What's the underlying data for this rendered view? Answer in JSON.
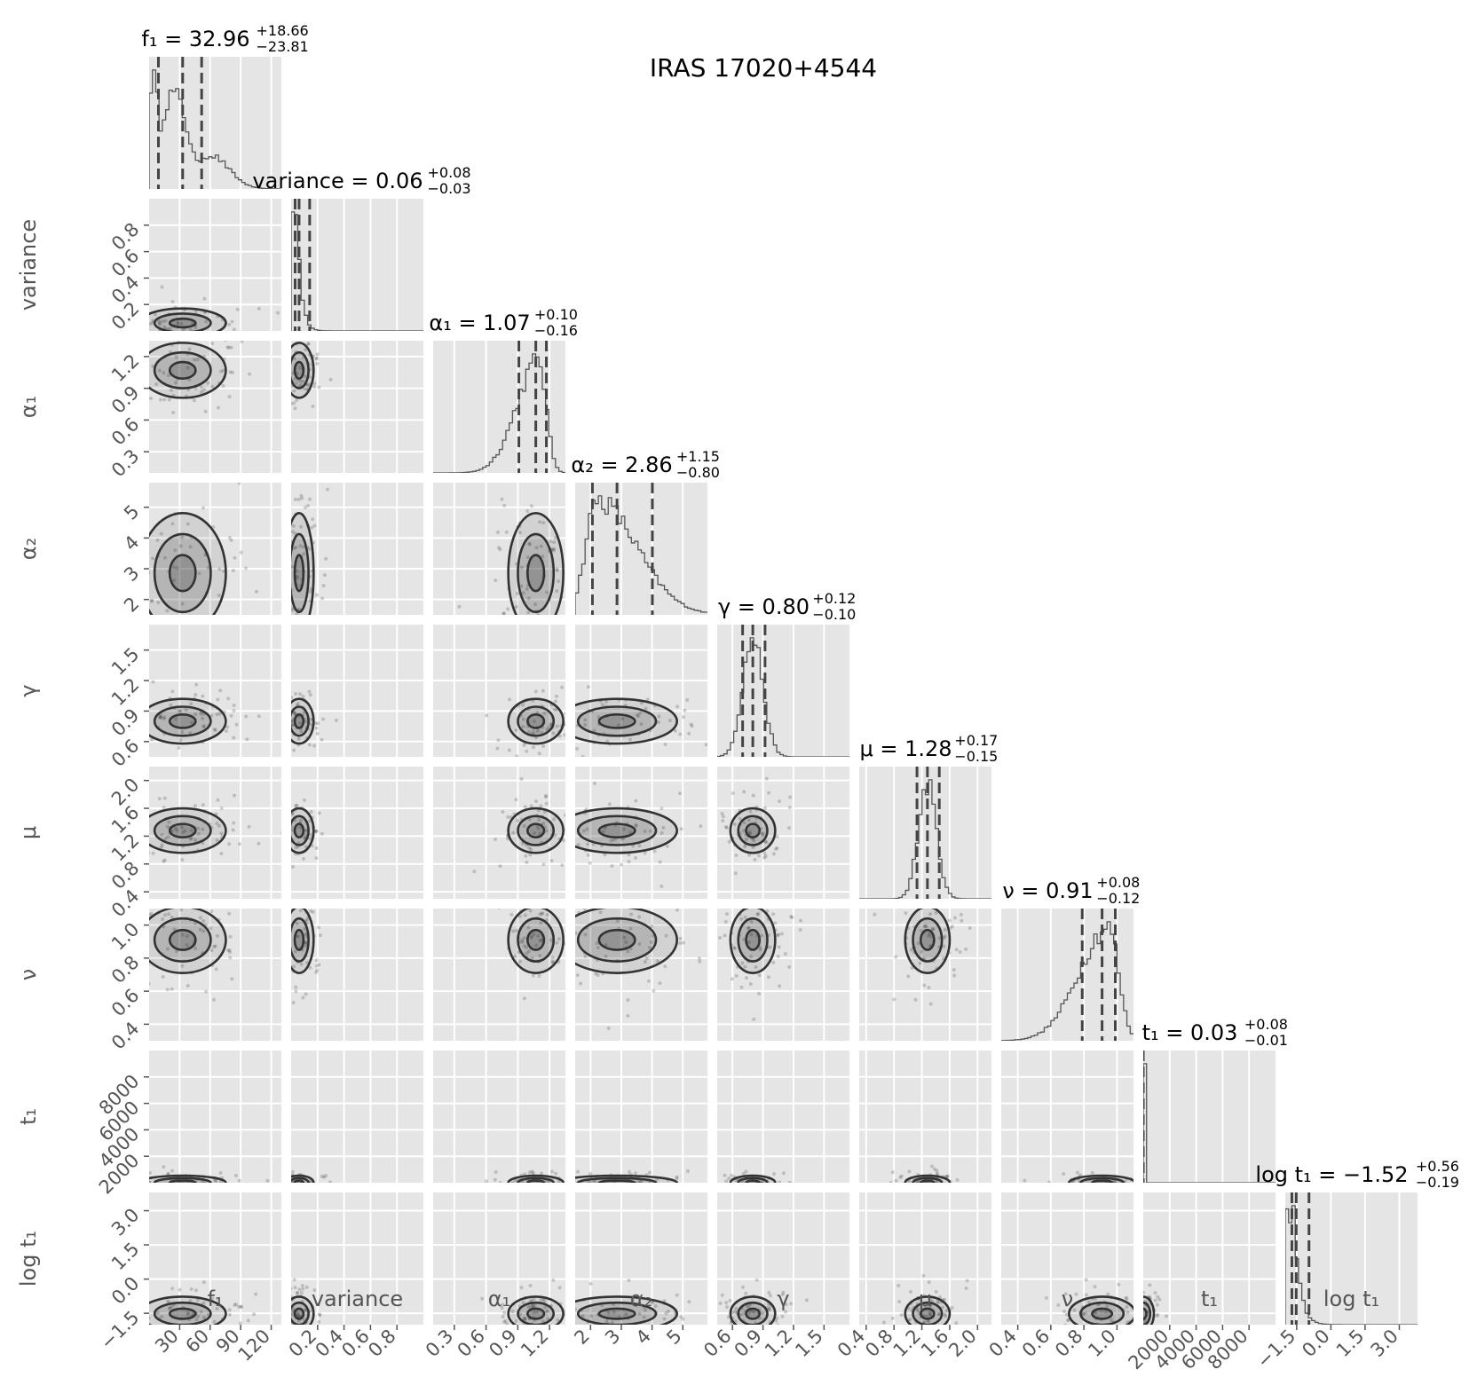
{
  "chart_data": {
    "type": "corner",
    "title": "IRAS 17020+4544",
    "parameters": [
      {
        "key": "f1",
        "label": "f₁",
        "range": [
          0,
          130
        ],
        "ticks": [
          "30",
          "60",
          "90",
          "120"
        ],
        "tick_values": [
          30,
          60,
          90,
          120
        ],
        "median": "32.96",
        "plus": "+18.66",
        "minus": "−23.81",
        "title_prefix": "f₁ = ",
        "quantiles": [
          9.15,
          32.96,
          51.62
        ],
        "hist_mode": "multi",
        "hist_peak": [
          24,
          48
        ]
      },
      {
        "key": "variance",
        "label": "variance",
        "range": [
          0,
          1.0
        ],
        "ticks": [
          "0.2",
          "0.4",
          "0.6",
          "0.8"
        ],
        "tick_values": [
          0.2,
          0.4,
          0.6,
          0.8
        ],
        "median": "0.06",
        "plus": "+0.08",
        "minus": "−0.03",
        "title_prefix": "variance = ",
        "quantiles": [
          0.03,
          0.06,
          0.14
        ],
        "hist_mode": "spike",
        "hist_peak": [
          0.05,
          0.03
        ]
      },
      {
        "key": "alpha1",
        "label": "α₁",
        "range": [
          0.1,
          1.35
        ],
        "ticks": [
          "0.3",
          "0.6",
          "0.9",
          "1.2"
        ],
        "tick_values": [
          0.3,
          0.6,
          0.9,
          1.2
        ],
        "median": "1.07",
        "plus": "+0.10",
        "minus": "−0.16",
        "title_prefix": "α₁ = ",
        "quantiles": [
          0.91,
          1.07,
          1.17
        ],
        "hist_mode": "leftskew",
        "hist_peak": [
          1.1,
          0.07
        ]
      },
      {
        "key": "alpha2",
        "label": "α₂",
        "range": [
          1.5,
          5.8
        ],
        "ticks": [
          "2",
          "3",
          "4",
          "5"
        ],
        "tick_values": [
          2,
          3,
          4,
          5
        ],
        "median": "2.86",
        "plus": "+1.15",
        "minus": "−0.80",
        "title_prefix": "α₂ = ",
        "quantiles": [
          2.06,
          2.86,
          4.01
        ],
        "hist_mode": "rightskew",
        "hist_peak": [
          2.2,
          0.8
        ]
      },
      {
        "key": "gamma",
        "label": "γ",
        "range": [
          0.45,
          1.75
        ],
        "ticks": [
          "0.6",
          "0.9",
          "1.2",
          "1.5"
        ],
        "tick_values": [
          0.6,
          0.9,
          1.2,
          1.5
        ],
        "median": "0.80",
        "plus": "+0.12",
        "minus": "−0.10",
        "title_prefix": "γ = ",
        "quantiles": [
          0.7,
          0.8,
          0.92
        ],
        "hist_mode": "normal",
        "hist_peak": [
          0.8,
          0.1
        ]
      },
      {
        "key": "mu",
        "label": "μ",
        "range": [
          0.3,
          2.2
        ],
        "ticks": [
          "0.4",
          "0.8",
          "1.2",
          "1.6",
          "2.0"
        ],
        "tick_values": [
          0.4,
          0.8,
          1.2,
          1.6,
          2.0
        ],
        "median": "1.28",
        "plus": "+0.17",
        "minus": "−0.15",
        "title_prefix": "μ = ",
        "quantiles": [
          1.13,
          1.28,
          1.45
        ],
        "hist_mode": "normal",
        "hist_peak": [
          1.28,
          0.13
        ]
      },
      {
        "key": "nu",
        "label": "ν",
        "range": [
          0.3,
          1.1
        ],
        "ticks": [
          "0.4",
          "0.6",
          "0.8",
          "1.0"
        ],
        "tick_values": [
          0.4,
          0.6,
          0.8,
          1.0
        ],
        "median": "0.91",
        "plus": "+0.08",
        "minus": "−0.12",
        "title_prefix": "ν = ",
        "quantiles": [
          0.79,
          0.91,
          0.99
        ],
        "hist_mode": "leftskew",
        "hist_peak": [
          0.95,
          0.06
        ]
      },
      {
        "key": "t1",
        "label": "t₁",
        "range": [
          0,
          10000
        ],
        "ticks": [
          "2000",
          "4000",
          "6000",
          "8000"
        ],
        "tick_values": [
          2000,
          4000,
          6000,
          8000
        ],
        "median": "0.03",
        "plus": "+0.08",
        "minus": "−0.01",
        "title_prefix": "t₁ = ",
        "quantiles": [
          0.02,
          0.03,
          0.11
        ],
        "hist_mode": "spike",
        "hist_peak": [
          30,
          20
        ]
      },
      {
        "key": "logt1",
        "label": "log t₁",
        "range": [
          -2.0,
          3.8
        ],
        "ticks": [
          "−1.5",
          "0.0",
          "1.5",
          "3.0"
        ],
        "tick_values": [
          -1.5,
          0,
          1.5,
          3.0
        ],
        "median": "−1.52",
        "plus": "+0.56",
        "minus": "−0.19",
        "title_prefix": "log t₁ = ",
        "quantiles": [
          -1.71,
          -1.52,
          -0.96
        ],
        "hist_mode": "spike",
        "hist_peak": [
          -1.6,
          0.25
        ]
      }
    ],
    "quantile_levels": [
      0.16,
      0.5,
      0.84
    ],
    "contour_levels": 3,
    "colors": {
      "panel": "#e5e5e5",
      "grid": "#ffffff",
      "ink": "#555555",
      "density": "#333333",
      "dash": "#444444"
    }
  }
}
